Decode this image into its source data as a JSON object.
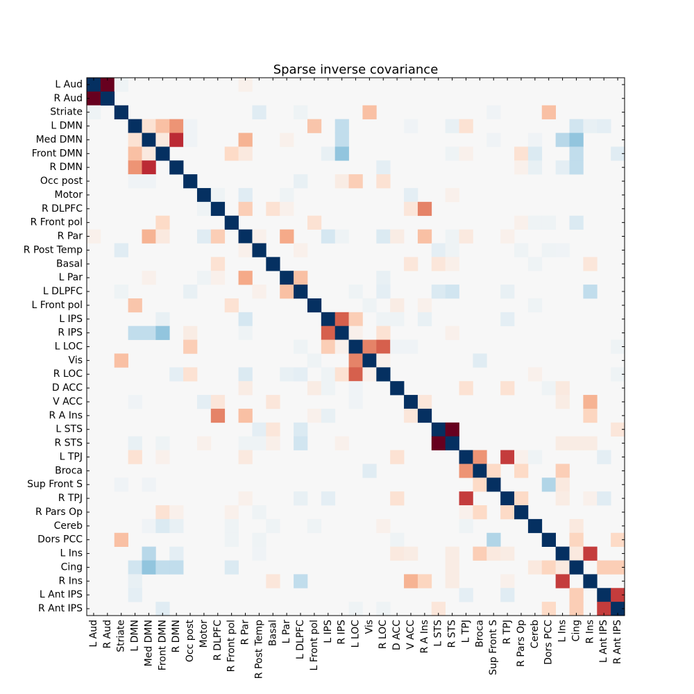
{
  "chart_data": {
    "type": "heatmap",
    "title": "Sparse inverse covariance",
    "labels": [
      "L Aud",
      "R Aud",
      "Striate",
      "L DMN",
      "Med DMN",
      "Front DMN",
      "R DMN",
      "Occ post",
      "Motor",
      "R DLPFC",
      "R Front pol",
      "R Par",
      "R Post Temp",
      "Basal",
      "L Par",
      "L DLPFC",
      "L Front pol",
      "L IPS",
      "R IPS",
      "L LOC",
      "Vis",
      "R LOC",
      "D ACC",
      "V ACC",
      "R A Ins",
      "L STS",
      "R STS",
      "L TPJ",
      "Broca",
      "Sup Front S",
      "R TPJ",
      "R Pars Op",
      "Cereb",
      "Dors PCC",
      "L Ins",
      "Cing",
      "R Ins",
      "L Ant IPS",
      "R Ant IPS"
    ],
    "colormap": "RdBu",
    "diagonal_value": 1.0,
    "vmin": -1.0,
    "vmax": 1.0,
    "background_value": 0.0,
    "colors": {
      "strong_positive": "#053061",
      "strong_negative": "#67001f",
      "zero": "#f7f7f7"
    },
    "entries": [
      [
        "L Aud",
        "R Aud",
        -1.0
      ],
      [
        "L Aud",
        "Striate",
        0.05
      ],
      [
        "L Aud",
        "R Par",
        -0.05
      ],
      [
        "Striate",
        "R Post Temp",
        0.12
      ],
      [
        "Striate",
        "L DLPFC",
        0.05
      ],
      [
        "Striate",
        "Vis",
        -0.3
      ],
      [
        "Striate",
        "Dors PCC",
        -0.3
      ],
      [
        "Striate",
        "Sup Front S",
        0.04
      ],
      [
        "L DMN",
        "Med DMN",
        -0.15
      ],
      [
        "L DMN",
        "Front DMN",
        -0.3
      ],
      [
        "L DMN",
        "R DMN",
        -0.45
      ],
      [
        "L DMN",
        "Occ post",
        0.04
      ],
      [
        "L DMN",
        "L Front pol",
        -0.28
      ],
      [
        "L DMN",
        "R IPS",
        0.25
      ],
      [
        "L DMN",
        "V ACC",
        0.04
      ],
      [
        "L DMN",
        "R STS",
        0.08
      ],
      [
        "L DMN",
        "L TPJ",
        -0.15
      ],
      [
        "L DMN",
        "Cing",
        0.2
      ],
      [
        "L DMN",
        "R Ins",
        0.08
      ],
      [
        "L DMN",
        "L Ant IPS",
        0.1
      ],
      [
        "Med DMN",
        "Front DMN",
        -0.1
      ],
      [
        "Med DMN",
        "R DMN",
        -0.75
      ],
      [
        "Med DMN",
        "Occ post",
        0.04
      ],
      [
        "Med DMN",
        "R Par",
        -0.35
      ],
      [
        "Med DMN",
        "L Par",
        -0.05
      ],
      [
        "Med DMN",
        "R IPS",
        0.25
      ],
      [
        "Med DMN",
        "Sup Front S",
        0.04
      ],
      [
        "Med DMN",
        "Cereb",
        0.04
      ],
      [
        "Med DMN",
        "L Ins",
        0.28
      ],
      [
        "Med DMN",
        "Cing",
        0.4
      ],
      [
        "Front DMN",
        "R Front pol",
        -0.2
      ],
      [
        "Front DMN",
        "R Par",
        -0.1
      ],
      [
        "Front DMN",
        "L IPS",
        0.08
      ],
      [
        "Front DMN",
        "R IPS",
        0.4
      ],
      [
        "Front DMN",
        "R STS",
        0.05
      ],
      [
        "Front DMN",
        "L TPJ",
        -0.05
      ],
      [
        "Front DMN",
        "R Pars Op",
        -0.15
      ],
      [
        "Front DMN",
        "Cereb",
        0.15
      ],
      [
        "Front DMN",
        "Cing",
        0.25
      ],
      [
        "Front DMN",
        "R Ant IPS",
        0.12
      ],
      [
        "R DMN",
        "R LOC",
        0.1
      ],
      [
        "R DMN",
        "R Pars Op",
        -0.05
      ],
      [
        "R DMN",
        "Cereb",
        0.08
      ],
      [
        "R DMN",
        "L Ins",
        0.1
      ],
      [
        "R DMN",
        "Cing",
        0.25
      ],
      [
        "Occ post",
        "L DLPFC",
        0.08
      ],
      [
        "Occ post",
        "R IPS",
        -0.08
      ],
      [
        "Occ post",
        "L LOC",
        -0.25
      ],
      [
        "Occ post",
        "R LOC",
        -0.15
      ],
      [
        "Motor",
        "R DLPFC",
        0.05
      ],
      [
        "Motor",
        "R Par",
        0.12
      ],
      [
        "Motor",
        "L Par",
        0.05
      ],
      [
        "Motor",
        "V ACC",
        0.1
      ],
      [
        "Motor",
        "R STS",
        -0.05
      ],
      [
        "R DLPFC",
        "R Par",
        -0.25
      ],
      [
        "R DLPFC",
        "Basal",
        -0.15
      ],
      [
        "R DLPFC",
        "L Par",
        -0.05
      ],
      [
        "R DLPFC",
        "V ACC",
        -0.12
      ],
      [
        "R DLPFC",
        "R A Ins",
        -0.5
      ],
      [
        "R Front pol",
        "L Front pol",
        -0.15
      ],
      [
        "R Front pol",
        "R Pars Op",
        -0.05
      ],
      [
        "R Front pol",
        "Cereb",
        0.05
      ],
      [
        "R Front pol",
        "Dors PCC",
        0.05
      ],
      [
        "R Front pol",
        "Cing",
        0.15
      ],
      [
        "R Par",
        "R Post Temp",
        -0.05
      ],
      [
        "R Par",
        "L Par",
        -0.38
      ],
      [
        "R Par",
        "L IPS",
        0.18
      ],
      [
        "R Par",
        "R IPS",
        0.05
      ],
      [
        "R Par",
        "R LOC",
        0.15
      ],
      [
        "R Par",
        "D ACC",
        -0.08
      ],
      [
        "R Par",
        "R A Ins",
        -0.3
      ],
      [
        "R Par",
        "R STS",
        0.05
      ],
      [
        "R Par",
        "L TPJ",
        -0.1
      ],
      [
        "R Par",
        "R TPJ",
        -0.05
      ],
      [
        "R Post Temp",
        "L DLPFC",
        -0.05
      ],
      [
        "R Post Temp",
        "L STS",
        0.1
      ],
      [
        "R Post Temp",
        "R STS",
        0.05
      ],
      [
        "R Post Temp",
        "R Pars Op",
        0.05
      ],
      [
        "R Post Temp",
        "Dors PCC",
        0.05
      ],
      [
        "R Post Temp",
        "L Ins",
        0.04
      ],
      [
        "Basal",
        "V ACC",
        -0.12
      ],
      [
        "Basal",
        "L STS",
        -0.12
      ],
      [
        "Basal",
        "R STS",
        -0.06
      ],
      [
        "Basal",
        "Cereb",
        0.05
      ],
      [
        "Basal",
        "R Ins",
        -0.12
      ],
      [
        "L Par",
        "L DLPFC",
        -0.3
      ],
      [
        "L Par",
        "R LOC",
        0.08
      ],
      [
        "L DLPFC",
        "L LOC",
        0.05
      ],
      [
        "L DLPFC",
        "R LOC",
        0.1
      ],
      [
        "L DLPFC",
        "L STS",
        0.15
      ],
      [
        "L DLPFC",
        "R STS",
        0.2
      ],
      [
        "L DLPFC",
        "R TPJ",
        0.08
      ],
      [
        "L DLPFC",
        "R Ins",
        0.25
      ],
      [
        "L Front pol",
        "Vis",
        0.05
      ],
      [
        "L Front pol",
        "D ACC",
        -0.08
      ],
      [
        "L Front pol",
        "R A Ins",
        -0.05
      ],
      [
        "L Front pol",
        "Cereb",
        0.05
      ],
      [
        "L IPS",
        "R IPS",
        -0.6
      ],
      [
        "L IPS",
        "L LOC",
        -0.25
      ],
      [
        "L IPS",
        "R LOC",
        0.05
      ],
      [
        "L IPS",
        "D ACC",
        0.05
      ],
      [
        "L IPS",
        "R A Ins",
        0.08
      ],
      [
        "L IPS",
        "R TPJ",
        0.1
      ],
      [
        "R IPS",
        "L LOC",
        -0.05
      ],
      [
        "R IPS",
        "R LOC",
        -0.15
      ],
      [
        "R IPS",
        "R STS",
        -0.05
      ],
      [
        "L LOC",
        "Vis",
        -0.5
      ],
      [
        "L LOC",
        "R LOC",
        -0.6
      ],
      [
        "L LOC",
        "D ACC",
        0.04
      ],
      [
        "L LOC",
        "V ACC",
        0.04
      ],
      [
        "L LOC",
        "R Ant IPS",
        0.05
      ],
      [
        "Vis",
        "R LOC",
        -0.05
      ],
      [
        "Vis",
        "Broca",
        0.12
      ],
      [
        "R LOC",
        "Cereb",
        -0.05
      ],
      [
        "R LOC",
        "R Ant IPS",
        0.05
      ],
      [
        "D ACC",
        "L TPJ",
        -0.15
      ],
      [
        "D ACC",
        "R TPJ",
        -0.15
      ],
      [
        "D ACC",
        "Dors PCC",
        0.05
      ],
      [
        "D ACC",
        "L Ins",
        -0.1
      ],
      [
        "V ACC",
        "R A Ins",
        -0.12
      ],
      [
        "V ACC",
        "L Ins",
        -0.08
      ],
      [
        "V ACC",
        "R Ins",
        -0.35
      ],
      [
        "R A Ins",
        "R Ins",
        -0.22
      ],
      [
        "L STS",
        "R STS",
        -1.0
      ],
      [
        "L STS",
        "R Ant IPS",
        -0.12
      ],
      [
        "R STS",
        "Cing",
        -0.08
      ],
      [
        "R STS",
        "L Ins",
        -0.08
      ],
      [
        "R STS",
        "R Ins",
        -0.08
      ],
      [
        "L TPJ",
        "Broca",
        -0.45
      ],
      [
        "L TPJ",
        "R TPJ",
        -0.7
      ],
      [
        "L TPJ",
        "R Pars Op",
        -0.05
      ],
      [
        "L TPJ",
        "Cereb",
        0.05
      ],
      [
        "L TPJ",
        "L Ant IPS",
        0.1
      ],
      [
        "Broca",
        "Sup Front S",
        -0.2
      ],
      [
        "Broca",
        "R Pars Op",
        -0.2
      ],
      [
        "Broca",
        "L Ins",
        -0.25
      ],
      [
        "Sup Front S",
        "Dors PCC",
        0.3
      ],
      [
        "Sup Front S",
        "L Ins",
        -0.1
      ],
      [
        "R TPJ",
        "R Pars Op",
        -0.2
      ],
      [
        "R TPJ",
        "L Ins",
        -0.08
      ],
      [
        "R TPJ",
        "R Ins",
        -0.05
      ],
      [
        "R TPJ",
        "L Ant IPS",
        0.12
      ],
      [
        "Cereb",
        "Cing",
        -0.1
      ],
      [
        "Dors PCC",
        "Cing",
        -0.22
      ],
      [
        "Dors PCC",
        "R Ant IPS",
        -0.2
      ],
      [
        "L Ins",
        "Cing",
        -0.1
      ],
      [
        "L Ins",
        "R Ins",
        -0.7
      ],
      [
        "Cing",
        "L Ant IPS",
        -0.25
      ],
      [
        "Cing",
        "R Ant IPS",
        -0.25
      ],
      [
        "L Ant IPS",
        "R Ant IPS",
        -0.7
      ]
    ]
  }
}
